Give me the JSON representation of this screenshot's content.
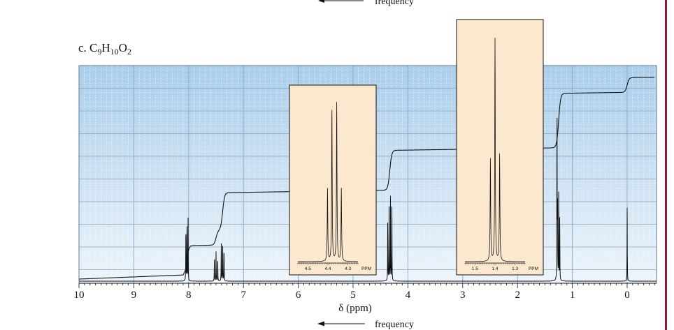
{
  "top_caption": "frequency",
  "panel_label": {
    "prefix": "c. ",
    "formula": [
      {
        "t": "C",
        "sub": false
      },
      {
        "t": "9",
        "sub": true
      },
      {
        "t": "H",
        "sub": false
      },
      {
        "t": "10",
        "sub": true
      },
      {
        "t": "O",
        "sub": false
      },
      {
        "t": "2",
        "sub": true
      }
    ]
  },
  "colors": {
    "plot_bg_top": "#a9cdea",
    "plot_bg_bottom": "#eef5fb",
    "inset_bg": "#fbe8cf",
    "trace": "#111111",
    "grid_major": "#8aa6bf",
    "grid_minor": "#ffffff",
    "accent_rule": "#8b1a3c"
  },
  "chart_data": {
    "type": "line",
    "xlabel": "δ (ppm)",
    "bottom_caption": "frequency",
    "xlim": [
      10,
      -0.5
    ],
    "x_reversed": true,
    "ylim": [
      0,
      1
    ],
    "x_ticks": [
      10,
      9,
      8,
      7,
      6,
      5,
      4,
      3,
      2,
      1,
      0
    ],
    "grid": true,
    "peaks": [
      {
        "shift": 8.03,
        "heights": [
          0.3,
          0.27,
          0.3
        ],
        "spacing": 0.02
      },
      {
        "shift": 7.5,
        "heights": [
          0.12,
          0.14,
          0.13
        ],
        "spacing": 0.03
      },
      {
        "shift": 7.38,
        "heights": [
          0.18,
          0.2,
          0.19
        ],
        "spacing": 0.025
      },
      {
        "shift": 4.33,
        "heights": [
          0.36,
          0.4,
          0.37,
          0.33
        ],
        "spacing": 0.025
      },
      {
        "shift": 1.25,
        "heights": [
          0.33,
          0.41,
          0.38
        ],
        "spacing": 0.02
      },
      {
        "shift": 1.28,
        "heights": [
          0.95
        ],
        "spacing": 0.0
      },
      {
        "shift": 0.0,
        "heights": [
          0.35
        ],
        "spacing": 0.0
      }
    ],
    "integral_steps": [
      {
        "from": 10,
        "to": 8.06,
        "level_start": 0.01,
        "level_end": 0.03
      },
      {
        "at": 8.03,
        "level": 0.17
      },
      {
        "at": 7.5,
        "level": 0.24
      },
      {
        "at": 7.38,
        "level": 0.42
      },
      {
        "at": 4.33,
        "level": 0.61
      },
      {
        "at": 1.25,
        "level": 0.87
      },
      {
        "at": 0.0,
        "level": 0.94
      }
    ],
    "insets": [
      {
        "name": "quartet",
        "x_ticks": [
          4.5,
          4.4,
          4.3
        ],
        "tick_labels": [
          "4.5",
          "4.4",
          "4.3"
        ],
        "unit": "PPM",
        "xlim": [
          4.55,
          4.25
        ],
        "peaks": [
          {
            "shift": 4.402,
            "height": 0.45
          },
          {
            "shift": 4.38,
            "height": 0.95
          },
          {
            "shift": 4.356,
            "height": 0.98
          },
          {
            "shift": 4.333,
            "height": 0.45
          }
        ]
      },
      {
        "name": "triplet",
        "x_ticks": [
          1.5,
          1.4,
          1.3
        ],
        "tick_labels": [
          "1.5",
          "1.4",
          "1.3"
        ],
        "unit": "PPM",
        "xlim": [
          1.55,
          1.25
        ],
        "peaks": [
          {
            "shift": 1.423,
            "height": 0.45
          },
          {
            "shift": 1.4,
            "height": 0.98
          },
          {
            "shift": 1.377,
            "height": 0.47
          }
        ]
      }
    ]
  }
}
